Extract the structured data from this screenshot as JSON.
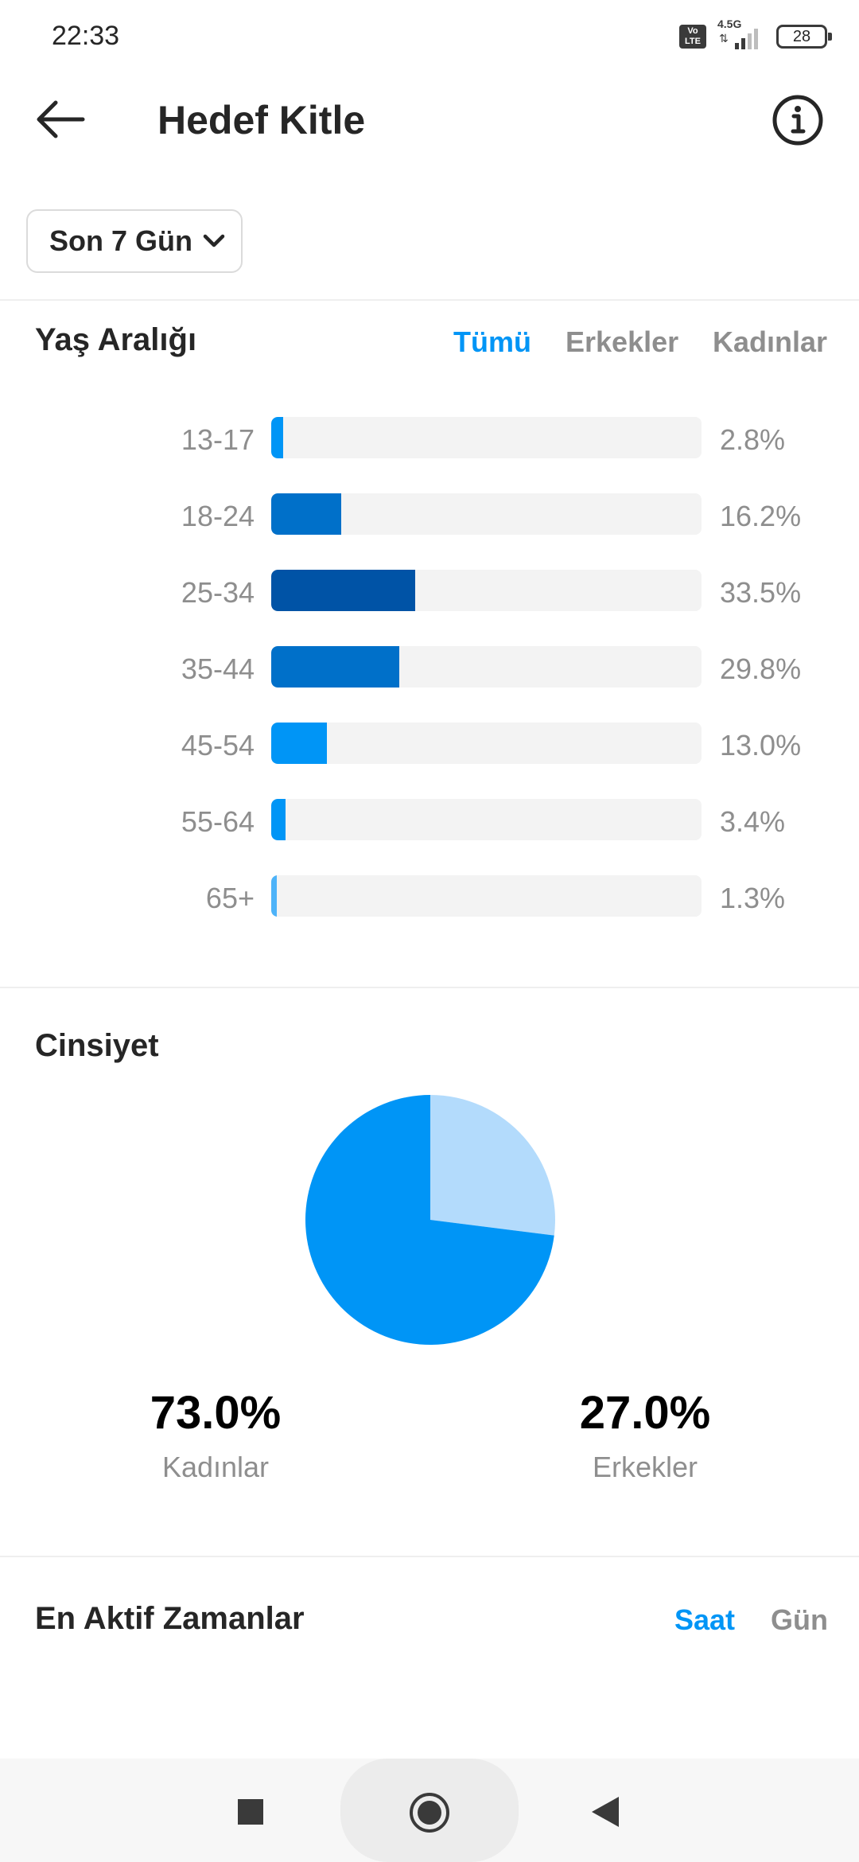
{
  "status_bar": {
    "time": "22:33",
    "volte": "Vo LTE",
    "network": "4.5G",
    "network_arrows": "⇅",
    "battery": "28"
  },
  "header": {
    "title": "Hedef Kitle"
  },
  "range_select": {
    "label": "Son 7 Gün"
  },
  "age_section": {
    "title": "Yaş Aralığı",
    "tabs": [
      "Tümü",
      "Erkekler",
      "Kadınlar"
    ],
    "active_tab": "Tümü"
  },
  "gender_section": {
    "title": "Cinsiyet",
    "women_pct": "73.0%",
    "women_label": "Kadınlar",
    "men_pct": "27.0%",
    "men_label": "Erkekler"
  },
  "active_section": {
    "title": "En Aktif Zamanlar",
    "tabs": [
      "Saat",
      "Gün"
    ],
    "active_tab": "Saat"
  },
  "chart_data": [
    {
      "type": "bar",
      "orientation": "horizontal",
      "categories": [
        "13-17",
        "18-24",
        "25-34",
        "35-44",
        "45-54",
        "55-64",
        "65+"
      ],
      "values": [
        2.8,
        16.2,
        33.5,
        29.8,
        13.0,
        3.4,
        1.3
      ],
      "value_labels": [
        "2.8%",
        "16.2%",
        "33.5%",
        "29.8%",
        "13.0%",
        "3.4%",
        "1.3%"
      ],
      "colors": [
        "#0095f6",
        "#0070c9",
        "#0053a6",
        "#0070c9",
        "#0095f6",
        "#0095f6",
        "#4db3f9"
      ],
      "xlim": [
        0,
        100
      ]
    },
    {
      "type": "pie",
      "labels": [
        "Kadınlar",
        "Erkekler"
      ],
      "values": [
        73.0,
        27.0
      ],
      "colors": [
        "#0095f6",
        "#b3dbfc"
      ]
    }
  ]
}
